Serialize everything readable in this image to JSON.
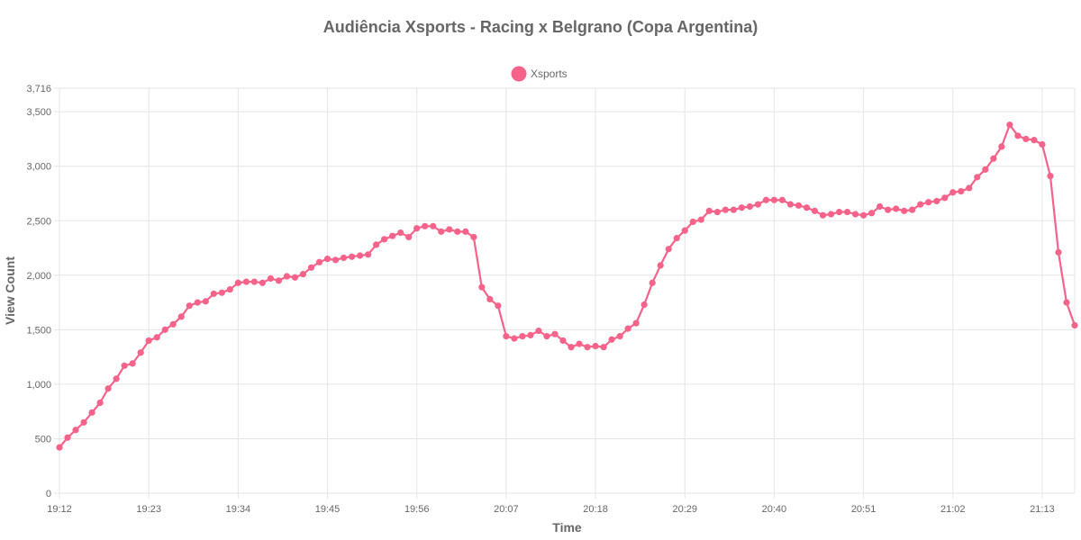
{
  "chart_data": {
    "type": "line",
    "title": "Audiência Xsports - Racing x Belgrano (Copa Argentina)",
    "xlabel": "Time",
    "ylabel": "View Count",
    "ylim": [
      0,
      3716
    ],
    "y_ticks": [
      "0",
      "500",
      "1,000",
      "1,500",
      "2,000",
      "2,500",
      "3,000",
      "3,500",
      "3,716"
    ],
    "y_tick_values": [
      0,
      500,
      1000,
      1500,
      2000,
      2500,
      3000,
      3500,
      3716
    ],
    "x_tick_labels": [
      "19:12",
      "19:23",
      "19:34",
      "19:45",
      "19:56",
      "20:07",
      "20:18",
      "20:29",
      "20:40",
      "20:51",
      "21:02",
      "21:13"
    ],
    "x_tick_every": 11,
    "legend_position": "top",
    "grid": true,
    "colors": {
      "series": "#f5628a",
      "grid": "#e5e5e5",
      "text": "#666666"
    },
    "series": [
      {
        "name": "Xsports",
        "values": [
          420,
          510,
          580,
          650,
          740,
          830,
          960,
          1050,
          1170,
          1190,
          1290,
          1400,
          1430,
          1500,
          1550,
          1620,
          1720,
          1750,
          1760,
          1830,
          1840,
          1870,
          1930,
          1940,
          1940,
          1930,
          1970,
          1950,
          1990,
          1980,
          2010,
          2070,
          2120,
          2150,
          2140,
          2160,
          2170,
          2180,
          2190,
          2280,
          2330,
          2360,
          2390,
          2350,
          2430,
          2450,
          2450,
          2400,
          2420,
          2400,
          2400,
          2350,
          1890,
          1780,
          1720,
          1440,
          1420,
          1440,
          1450,
          1490,
          1440,
          1460,
          1400,
          1340,
          1370,
          1340,
          1350,
          1340,
          1410,
          1440,
          1510,
          1560,
          1730,
          1930,
          2090,
          2240,
          2340,
          2410,
          2490,
          2510,
          2590,
          2580,
          2600,
          2600,
          2620,
          2630,
          2650,
          2690,
          2690,
          2690,
          2650,
          2640,
          2620,
          2590,
          2550,
          2560,
          2580,
          2580,
          2560,
          2550,
          2570,
          2630,
          2600,
          2610,
          2590,
          2600,
          2650,
          2670,
          2680,
          2710,
          2760,
          2770,
          2800,
          2900,
          2970,
          3070,
          3180,
          3380,
          3280,
          3250,
          3240,
          3200,
          2910,
          2210,
          1750,
          1540
        ]
      }
    ]
  }
}
